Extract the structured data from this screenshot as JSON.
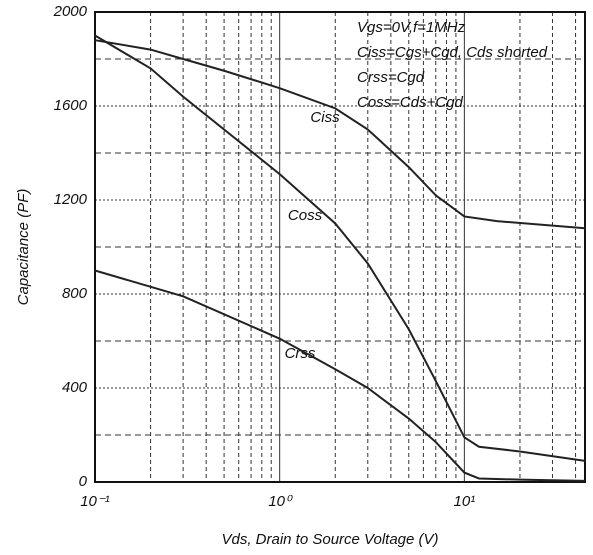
{
  "chart_data": {
    "type": "line",
    "xlabel": "Vds, Drain to Source Voltage (V)",
    "ylabel": "Capacitance (PF)",
    "annotations": [
      "Vgs=0V,f=1MHz",
      "Ciss=Cgs+Cgd, Cds shorted",
      "Crss=Cgd",
      "Coss=Cds+Cgd"
    ],
    "xscale": "log",
    "xlim": [
      0.1,
      45
    ],
    "ylim": [
      0,
      2000
    ],
    "xticks": [
      {
        "value": 0.1,
        "label": "10⁻¹"
      },
      {
        "value": 1,
        "label": "10⁰"
      },
      {
        "value": 10,
        "label": "10¹"
      }
    ],
    "x_minor_ticks": [
      0.2,
      0.3,
      0.4,
      0.5,
      0.6,
      0.7,
      0.8,
      0.9,
      2,
      3,
      4,
      5,
      6,
      7,
      8,
      9,
      20,
      30,
      40
    ],
    "yticks": [
      0,
      400,
      800,
      1200,
      1600,
      2000
    ],
    "y_minor_ticks": [
      200,
      600,
      1000,
      1400,
      1800
    ],
    "grid": true,
    "series": [
      {
        "name": "Ciss",
        "color": "#222222",
        "x": [
          0.1,
          0.2,
          0.3,
          0.5,
          1,
          2,
          3,
          5,
          7,
          10,
          15,
          45
        ],
        "values": [
          1880,
          1840,
          1800,
          1750,
          1676,
          1590,
          1500,
          1340,
          1220,
          1130,
          1110,
          1080
        ]
      },
      {
        "name": "Coss",
        "color": "#222222",
        "x": [
          0.1,
          0.2,
          0.3,
          0.5,
          1,
          2,
          3,
          5,
          7,
          10,
          12,
          20,
          45
        ],
        "values": [
          1900,
          1760,
          1640,
          1500,
          1310,
          1100,
          930,
          650,
          430,
          190,
          150,
          130,
          90
        ]
      },
      {
        "name": "Crss",
        "color": "#222222",
        "x": [
          0.1,
          0.3,
          1,
          2,
          3,
          5,
          7,
          10,
          12,
          20,
          45
        ],
        "values": [
          900,
          790,
          610,
          480,
          400,
          270,
          170,
          40,
          15,
          10,
          5
        ]
      }
    ]
  }
}
